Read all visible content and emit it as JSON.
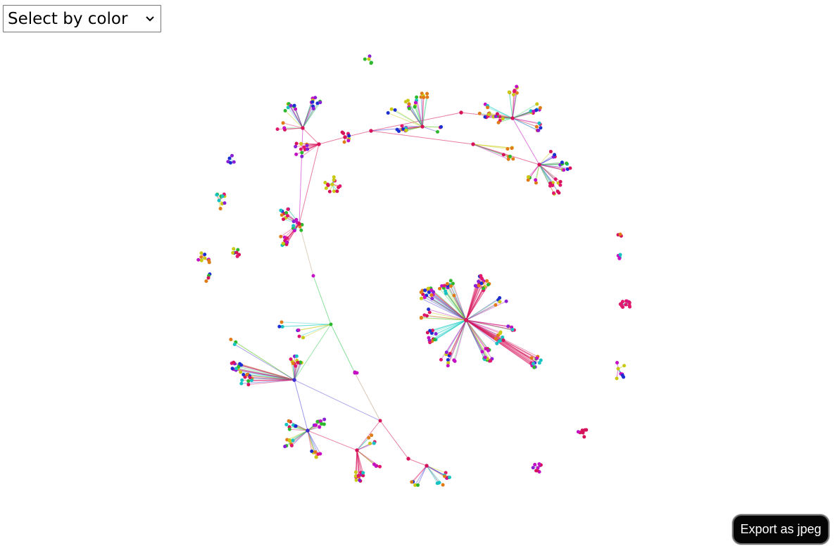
{
  "controls": {
    "color_select": {
      "selected_label": "Select by color",
      "icon": "chevron-down-icon"
    },
    "export_button_label": "Export as jpeg"
  },
  "graph": {
    "type": "network-graph",
    "node_colors": [
      "#d6135a",
      "#c40fc4",
      "#8a1fd6",
      "#1b2fd1",
      "#17c2c2",
      "#2db82d",
      "#c9c914",
      "#e07b17",
      "#e0196e"
    ],
    "edge_colors": [
      "#d6135a",
      "#c40fc4",
      "#3a2fd1",
      "#33cc55",
      "#2bd1c8",
      "#c9c914"
    ]
  }
}
